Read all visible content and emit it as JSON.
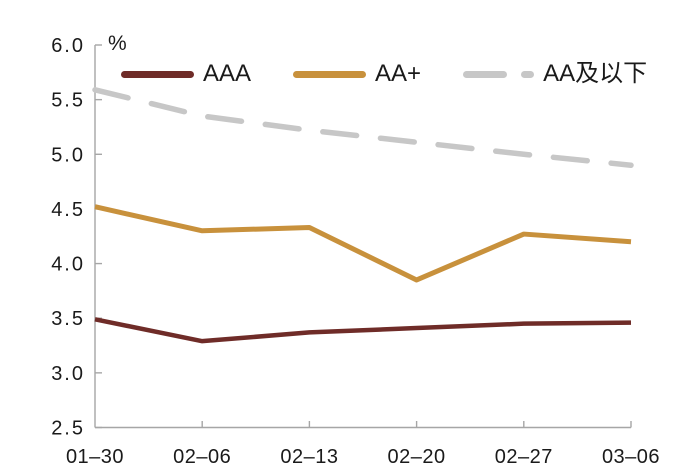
{
  "chart_data": {
    "type": "line",
    "title": "",
    "unit_label": "%",
    "categories": [
      "01–30",
      "02–06",
      "02–13",
      "02–20",
      "02–27",
      "03–06"
    ],
    "y_ticks": [
      6.0,
      5.5,
      5.0,
      4.5,
      4.0,
      3.5,
      3.0,
      2.5
    ],
    "y_tick_labels": [
      "6.0",
      "5.5",
      "5.0",
      "4.5",
      "4.0",
      "3.5",
      "3.0",
      "2.5"
    ],
    "ylim": [
      2.5,
      6.0
    ],
    "grid": false,
    "legend_position": "top",
    "series": [
      {
        "name": "AAA",
        "color": "#6F2C28",
        "dashed": false,
        "width": 4.5,
        "values": [
          3.49,
          3.29,
          3.37,
          3.41,
          3.45,
          3.46
        ]
      },
      {
        "name": "AA+",
        "color": "#C8913C",
        "dashed": false,
        "width": 5,
        "values": [
          4.52,
          4.3,
          4.33,
          3.85,
          4.27,
          4.2
        ]
      },
      {
        "name": "AA及以下",
        "color": "#C7C7C7",
        "dashed": true,
        "width": 5.5,
        "values": [
          5.59,
          5.35,
          5.22,
          5.11,
          5.0,
          4.9
        ]
      }
    ]
  },
  "colors": {
    "axis": "#A6A6A6",
    "text": "#1A1A1A",
    "background": "#FFFFFF"
  }
}
